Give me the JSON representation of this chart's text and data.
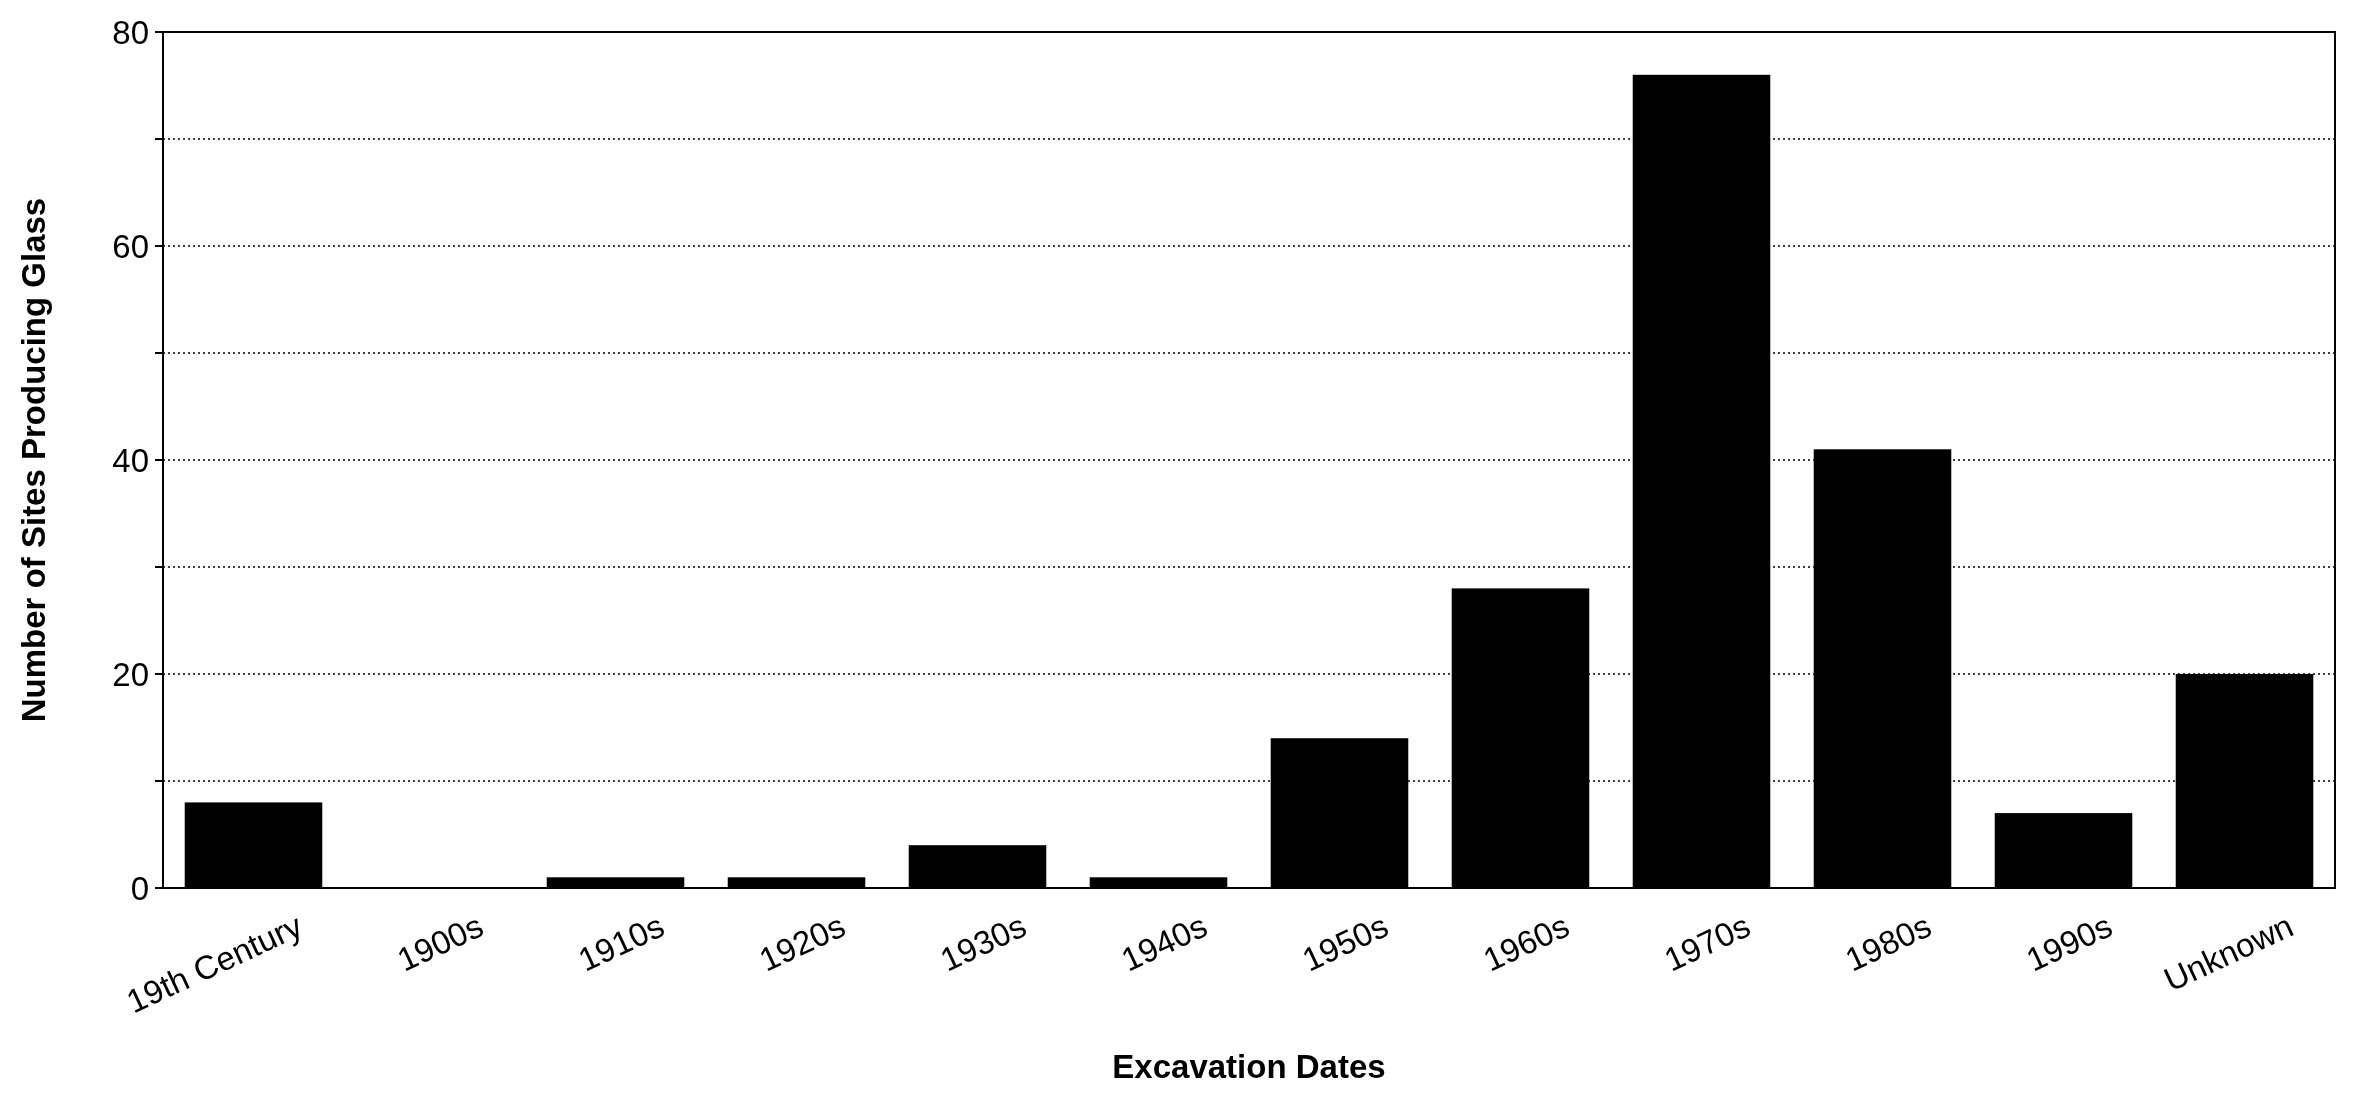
{
  "chart_data": {
    "type": "bar",
    "xlabel": "Excavation Dates",
    "ylabel": "Number of Sites Producing Glass",
    "categories": [
      "19th Century",
      "1900s",
      "1910s",
      "1920s",
      "1930s",
      "1940s",
      "1950s",
      "1960s",
      "1970s",
      "1980s",
      "1990s",
      "Unknown"
    ],
    "values": [
      8,
      0,
      1,
      1,
      4,
      1,
      14,
      28,
      76,
      41,
      7,
      20
    ],
    "color": "#000000",
    "ylim": [
      0,
      80
    ],
    "yticks": [
      0,
      {
        "value": 10,
        "label": null
      },
      20,
      {
        "value": 30,
        "label": null
      },
      40,
      {
        "value": 50,
        "label": null
      },
      60,
      {
        "value": 70,
        "label": null
      },
      80
    ],
    "grid": "y"
  }
}
